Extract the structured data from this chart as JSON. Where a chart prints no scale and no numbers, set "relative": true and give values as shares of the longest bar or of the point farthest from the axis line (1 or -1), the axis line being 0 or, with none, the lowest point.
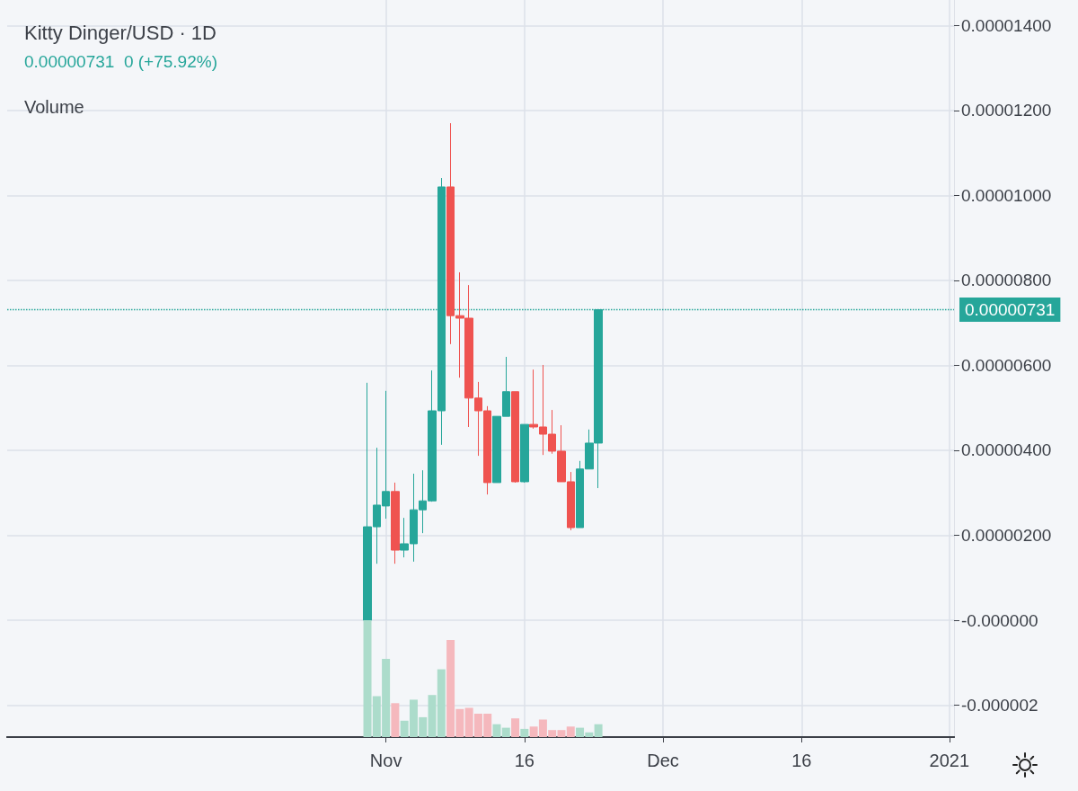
{
  "chart_data": [
    {
      "type": "candlestick",
      "title": "Kitty Dinger/USD · 1D",
      "subtitle": "0.00000731  0 (+75.92%)",
      "x": [
        "2020-10-30",
        "2020-10-31",
        "2020-11-01",
        "2020-11-02",
        "2020-11-03",
        "2020-11-04",
        "2020-11-05",
        "2020-11-06",
        "2020-11-07",
        "2020-11-08",
        "2020-11-09",
        "2020-11-10",
        "2020-11-11",
        "2020-11-12",
        "2020-11-13",
        "2020-11-14",
        "2020-11-15",
        "2020-11-16",
        "2020-11-17",
        "2020-11-18",
        "2020-11-19",
        "2020-11-20",
        "2020-11-21",
        "2020-11-22",
        "2020-11-23",
        "2020-11-24"
      ],
      "ohlc": [
        [
          0.0,
          5.59e-06,
          0.0,
          2.2e-06
        ],
        [
          2.2e-06,
          4.06e-06,
          1.33e-06,
          2.71e-06
        ],
        [
          2.69e-06,
          5.4e-06,
          2.39e-06,
          3.03e-06
        ],
        [
          3.03e-06,
          3.24e-06,
          1.33e-06,
          1.65e-06
        ],
        [
          1.65e-06,
          2.41e-06,
          1.48e-06,
          1.8e-06
        ],
        [
          1.8e-06,
          3.45e-06,
          1.38e-06,
          2.6e-06
        ],
        [
          2.6e-06,
          3.53e-06,
          2.05e-06,
          2.81e-06
        ],
        [
          2.81e-06,
          5.88e-06,
          2.79e-06,
          4.93e-06
        ],
        [
          4.93e-06,
          1.041e-05,
          4.13e-06,
          1.02e-05
        ],
        [
          1.02e-05,
          1.17e-05,
          6.5e-06,
          7.17e-06
        ],
        [
          7.17e-06,
          8.19e-06,
          5.71e-06,
          7.11e-06
        ],
        [
          7.11e-06,
          7.89e-06,
          4.55e-06,
          5.23e-06
        ],
        [
          5.23e-06,
          5.61e-06,
          3.87e-06,
          4.93e-06
        ],
        [
          4.93e-06,
          5.04e-06,
          2.96e-06,
          3.24e-06
        ],
        [
          3.24e-06,
          4.8e-06,
          3.24e-06,
          4.8e-06
        ],
        [
          4.8e-06,
          6.2e-06,
          4.8e-06,
          5.38e-06
        ],
        [
          5.38e-06,
          5.38e-06,
          3.24e-06,
          3.26e-06
        ],
        [
          3.26e-06,
          4.61e-06,
          3.24e-06,
          4.61e-06
        ],
        [
          4.61e-06,
          5.9e-06,
          4.51e-06,
          4.55e-06
        ],
        [
          4.55e-06,
          6.01e-06,
          3.89e-06,
          4.38e-06
        ],
        [
          4.38e-06,
          4.95e-06,
          3.92e-06,
          3.98e-06
        ],
        [
          3.98e-06,
          4.59e-06,
          3.26e-06,
          3.26e-06
        ],
        [
          3.26e-06,
          3.49e-06,
          2.12e-06,
          2.18e-06
        ],
        [
          2.18e-06,
          3.75e-06,
          2.18e-06,
          3.56e-06
        ],
        [
          3.56e-06,
          4.49e-06,
          3.56e-06,
          4.17e-06
        ],
        [
          4.17e-06,
          7.31e-06,
          3.11e-06,
          7.31e-06
        ]
      ],
      "colors": [
        "#26a69a",
        "#26a69a",
        "#26a69a",
        "#ef5350",
        "#26a69a",
        "#26a69a",
        "#26a69a",
        "#26a69a",
        "#26a69a",
        "#ef5350",
        "#ef5350",
        "#ef5350",
        "#ef5350",
        "#ef5350",
        "#26a69a",
        "#26a69a",
        "#ef5350",
        "#26a69a",
        "#ef5350",
        "#ef5350",
        "#ef5350",
        "#ef5350",
        "#ef5350",
        "#26a69a",
        "#26a69a",
        "#26a69a"
      ],
      "xlim": [
        "2020-09-21",
        "2021-01-01T12:00"
      ],
      "xticks": [
        {
          "value": "2020-11-01",
          "label": "Nov"
        },
        {
          "value": "2020-11-16",
          "label": "16"
        },
        {
          "value": "2020-12-01",
          "label": "Dec"
        },
        {
          "value": "2020-12-16",
          "label": "16"
        },
        {
          "value": "2021-01-01",
          "label": "2021"
        }
      ],
      "ylim": [
        -2.75e-06,
        1.46e-05
      ],
      "yticks": [
        {
          "value": -2e-06,
          "label": "-0.000002"
        },
        {
          "value": 0,
          "label": "-0.000000"
        },
        {
          "value": 2e-06,
          "label": "0.00000200"
        },
        {
          "value": 4e-06,
          "label": "0.00000400"
        },
        {
          "value": 6e-06,
          "label": "0.00000600"
        },
        {
          "value": 8e-06,
          "label": "0.00000800"
        },
        {
          "value": 1e-05,
          "label": "0.00001000"
        },
        {
          "value": 1.2e-05,
          "label": "0.00001200"
        },
        {
          "value": 1.4e-05,
          "label": "0.00001400"
        }
      ],
      "ref_lines": [
        {
          "axis": "y",
          "value": 7.31e-06,
          "label": "0.00000731",
          "color": "#26a69a",
          "line_style": "dotted"
        }
      ],
      "grid": true
    },
    {
      "type": "bar",
      "title": "Volume",
      "relative": true,
      "tick_labels": false,
      "x": [
        "2020-10-30",
        "2020-10-31",
        "2020-11-01",
        "2020-11-02",
        "2020-11-03",
        "2020-11-04",
        "2020-11-05",
        "2020-11-06",
        "2020-11-07",
        "2020-11-08",
        "2020-11-09",
        "2020-11-10",
        "2020-11-11",
        "2020-11-12",
        "2020-11-13",
        "2020-11-14",
        "2020-11-15",
        "2020-11-16",
        "2020-11-17",
        "2020-11-18",
        "2020-11-19",
        "2020-11-20",
        "2020-11-21",
        "2020-11-22",
        "2020-11-23",
        "2020-11-24"
      ],
      "values": [
        1,
        0.35,
        0.67,
        0.29,
        0.14,
        0.32,
        0.17,
        0.36,
        0.58,
        0.83,
        0.24,
        0.25,
        0.2,
        0.2,
        0.11,
        0.08,
        0.16,
        0.07,
        0.09,
        0.15,
        0.06,
        0.06,
        0.09,
        0.08,
        0.04,
        0.11
      ],
      "colors": [
        "#acdccb",
        "#acdccb",
        "#acdccb",
        "#f5b8bd",
        "#acdccb",
        "#acdccb",
        "#acdccb",
        "#acdccb",
        "#acdccb",
        "#f5b8bd",
        "#f5b8bd",
        "#f5b8bd",
        "#f5b8bd",
        "#f5b8bd",
        "#acdccb",
        "#acdccb",
        "#f5b8bd",
        "#acdccb",
        "#f5b8bd",
        "#f5b8bd",
        "#f5b8bd",
        "#f5b8bd",
        "#f5b8bd",
        "#acdccb",
        "#acdccb",
        "#acdccb"
      ],
      "xlim": [
        "2020-09-21",
        "2021-01-01T12:00"
      ]
    }
  ]
}
